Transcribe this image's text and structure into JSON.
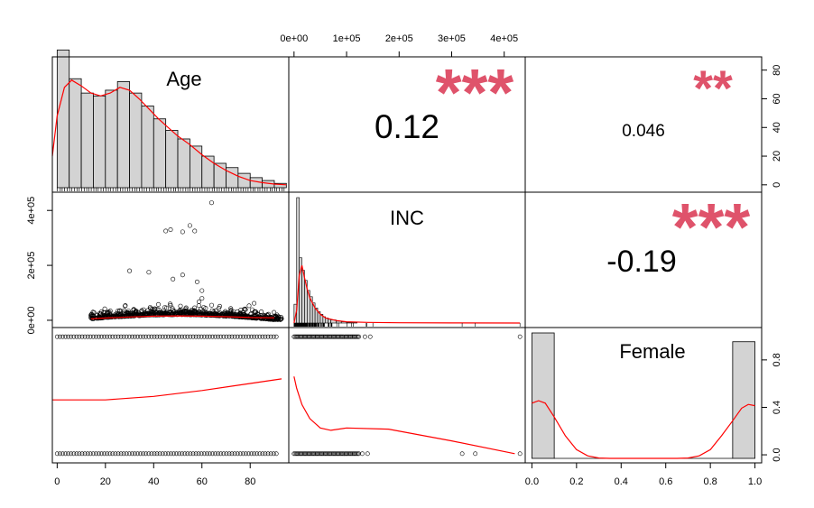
{
  "chart_data": {
    "type": "scatter-matrix",
    "variables": [
      "Age",
      "INC",
      "Female"
    ],
    "colors": {
      "smooth": "#ff0000",
      "stars": "#df536b",
      "bar_fill": "#d3d3d3"
    },
    "axes": {
      "age": {
        "ticks": [
          0,
          20,
          40,
          60,
          80
        ],
        "tick_labels": [
          "0",
          "20",
          "40",
          "60",
          "80"
        ],
        "range": [
          -2,
          96
        ]
      },
      "inc": {
        "ticks": [
          0,
          100000,
          200000,
          300000,
          400000
        ],
        "tick_labels": [
          "0e+00",
          "1e+05",
          "2e+05",
          "3e+05",
          "4e+05"
        ],
        "range": [
          -10000,
          440000
        ]
      },
      "inc_left": {
        "ticks": [
          0,
          200000,
          400000
        ],
        "tick_labels": [
          "0e+00",
          "2e+05",
          "4e+05"
        ]
      },
      "female": {
        "ticks": [
          0,
          0.2,
          0.4,
          0.6,
          0.8,
          1.0
        ],
        "tick_labels": [
          "0.0",
          "0.2",
          "0.4",
          "0.6",
          "0.8",
          "1.0"
        ],
        "range": [
          -0.03,
          1.03
        ]
      },
      "age_density_right": {
        "ticks": [
          0,
          20,
          40,
          60,
          80
        ],
        "tick_labels": [
          "0",
          "20",
          "40",
          "60",
          "80"
        ],
        "range": [
          -2,
          88
        ]
      },
      "female_density_right": {
        "ticks": [
          0,
          0.4,
          0.8
        ],
        "tick_labels": [
          "0.0",
          "0.4",
          "0.8"
        ],
        "range": [
          -0.03,
          1.05
        ]
      }
    },
    "correlations": [
      {
        "pair": [
          "Age",
          "INC"
        ],
        "value": "0.12",
        "stars": "***"
      },
      {
        "pair": [
          "Age",
          "Female"
        ],
        "value": "0.046",
        "stars": "**"
      },
      {
        "pair": [
          "INC",
          "Female"
        ],
        "value": "-0.19",
        "stars": "***"
      }
    ],
    "age_histogram": {
      "bin_edges": [
        0,
        5,
        10,
        15,
        20,
        25,
        30,
        35,
        40,
        45,
        50,
        55,
        60,
        65,
        70,
        75,
        80,
        85,
        90,
        95
      ],
      "counts": [
        94,
        74,
        64,
        62,
        66,
        72,
        64,
        55,
        46,
        38,
        32,
        27,
        20,
        15,
        12,
        8,
        5,
        3,
        1
      ]
    },
    "age_density": {
      "x": [
        -2,
        0,
        3,
        6,
        10,
        14,
        18,
        22,
        26,
        30,
        34,
        38,
        42,
        46,
        50,
        55,
        60,
        65,
        70,
        75,
        80,
        85,
        90,
        95
      ],
      "y": [
        20,
        48,
        68,
        73,
        69,
        64,
        62,
        64,
        68,
        66,
        60,
        53,
        46,
        40,
        34,
        28,
        21,
        15,
        10,
        6,
        3,
        1.5,
        0.5,
        0
      ]
    },
    "inc_histogram": {
      "bin_edges": [
        0,
        5000,
        10000,
        15000,
        20000,
        25000,
        30000,
        35000,
        40000,
        45000,
        50000,
        55000,
        60000,
        65000,
        70000,
        80000,
        90000,
        100000,
        120000
      ],
      "relative_heights": [
        0.15,
        1.0,
        0.52,
        0.42,
        0.34,
        0.26,
        0.21,
        0.16,
        0.12,
        0.09,
        0.07,
        0.05,
        0.04,
        0.03,
        0.025,
        0.015,
        0.01,
        0.005
      ]
    },
    "inc_density": {
      "x": [
        0,
        5000,
        10000,
        15000,
        20000,
        25000,
        30000,
        40000,
        50000,
        60000,
        80000,
        100000,
        140000,
        200000,
        300000,
        430000
      ],
      "relative_y": [
        0.0,
        0.1,
        0.38,
        0.46,
        0.36,
        0.27,
        0.2,
        0.12,
        0.07,
        0.04,
        0.02,
        0.01,
        0.005,
        0.002,
        0.001,
        0.0
      ]
    },
    "female_histogram": {
      "bin_edges": [
        0,
        0.1,
        0.9,
        1.0
      ],
      "relative_heights": [
        1.0,
        0.0,
        0.93
      ]
    },
    "female_density": {
      "x": [
        0,
        0.03,
        0.06,
        0.1,
        0.15,
        0.2,
        0.25,
        0.3,
        0.35,
        0.5,
        0.65,
        0.7,
        0.75,
        0.8,
        0.85,
        0.9,
        0.94,
        0.97,
        1.0
      ],
      "relative_y": [
        0.44,
        0.46,
        0.44,
        0.33,
        0.18,
        0.07,
        0.02,
        0.003,
        0.0,
        0.0,
        0.0,
        0.003,
        0.02,
        0.07,
        0.18,
        0.3,
        0.4,
        0.43,
        0.42
      ]
    },
    "age_inc_smooth": {
      "x": [
        14,
        20,
        30,
        40,
        50,
        60,
        70,
        80,
        90
      ],
      "y": [
        5000,
        8000,
        12000,
        15000,
        16000,
        15000,
        13000,
        10000,
        9000
      ]
    },
    "age_female_smooth": {
      "x": [
        -2,
        20,
        40,
        60,
        80,
        93
      ],
      "y": [
        0.46,
        0.46,
        0.49,
        0.54,
        0.6,
        0.64
      ]
    },
    "inc_female_smooth": {
      "x": [
        0,
        5000,
        15000,
        30000,
        50000,
        70000,
        100000,
        180000,
        300000,
        420000
      ],
      "y": [
        0.66,
        0.56,
        0.42,
        0.3,
        0.22,
        0.2,
        0.22,
        0.21,
        0.11,
        0.0
      ]
    },
    "age_inc_scatter_sample": [
      {
        "x": 45,
        "y": 325000
      },
      {
        "x": 47,
        "y": 330000
      },
      {
        "x": 52,
        "y": 322000
      },
      {
        "x": 55,
        "y": 345000
      },
      {
        "x": 57,
        "y": 325000
      },
      {
        "x": 64,
        "y": 428000
      },
      {
        "x": 30,
        "y": 180000
      },
      {
        "x": 48,
        "y": 150000
      },
      {
        "x": 52,
        "y": 165000
      },
      {
        "x": 58,
        "y": 140000
      },
      {
        "x": 60,
        "y": 108000
      },
      {
        "x": 38,
        "y": 175000
      }
    ],
    "inc_female_outliers": [
      {
        "x": 130000,
        "y": 0
      },
      {
        "x": 140000,
        "y": 0
      },
      {
        "x": 135000,
        "y": 1
      },
      {
        "x": 145000,
        "y": 1
      },
      {
        "x": 320000,
        "y": 0
      },
      {
        "x": 345000,
        "y": 0
      },
      {
        "x": 430000,
        "y": 0
      },
      {
        "x": 430000,
        "y": 1
      }
    ]
  }
}
